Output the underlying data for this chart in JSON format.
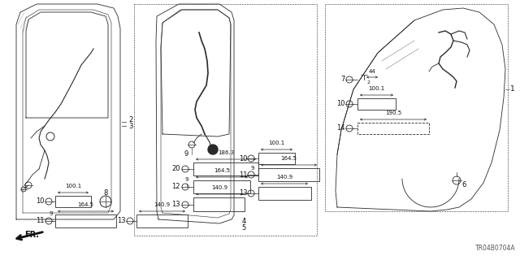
{
  "bg_color": "#ffffff",
  "line_color": "#2a2a2a",
  "text_color": "#111111",
  "diagram_code": "TR04B0704A",
  "figsize": [
    6.4,
    3.2
  ],
  "dpi": 100
}
